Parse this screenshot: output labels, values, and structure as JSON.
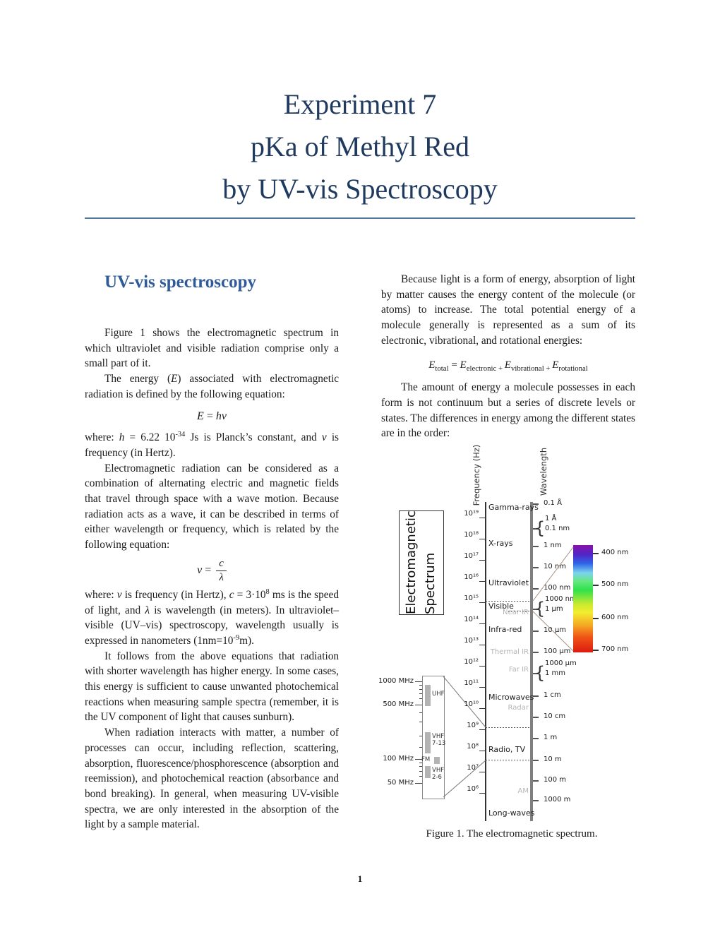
{
  "page": {
    "title_lines": [
      "Experiment 7",
      "pKa of Methyl Red",
      "by UV-vis Spectroscopy"
    ],
    "page_number": "1"
  },
  "left_column": {
    "heading": "UV-vis spectroscopy",
    "p1": "Figure 1 shows the electromagnetic spectrum in which ultraviolet and visible radiation comprise only a small part of it.",
    "p2": [
      {
        "t": "The energy ("
      },
      {
        "t": "E",
        "i": true
      },
      {
        "t": ") associated with electromagnetic radiation is defined by the following equation:"
      }
    ],
    "eq1": [
      {
        "t": "E",
        "i": true
      },
      {
        "t": " = "
      },
      {
        "t": "hν",
        "i": true
      }
    ],
    "p3": [
      {
        "t": "where: "
      },
      {
        "t": "h",
        "i": true
      },
      {
        "t": " = 6.22 10"
      },
      {
        "t": "-34",
        "sup": true
      },
      {
        "t": " Js is Planck’s constant, and "
      },
      {
        "t": "ν ",
        "i": true
      },
      {
        "t": "is frequency (in Hertz)."
      }
    ],
    "p4": "Electromagnetic radiation can be considered as a combination of alternating electric and magnetic fields that travel through space with a wave motion. Because radiation acts as a wave, it can be described in terms of either wavelength or frequency, which is related by the following equation:",
    "eq2": {
      "lhs": [
        {
          "t": "ν ",
          "i": true
        },
        {
          "t": "="
        }
      ],
      "num": "c",
      "den": "λ"
    },
    "p5": [
      {
        "t": "where: "
      },
      {
        "t": "ν ",
        "i": true
      },
      {
        "t": "is frequency (in Hertz), "
      },
      {
        "t": "c",
        "i": true
      },
      {
        "t": " = 3·10"
      },
      {
        "t": "8",
        "sup": true
      },
      {
        "t": " ms is the speed of light, and "
      },
      {
        "t": "λ ",
        "i": true
      },
      {
        "t": "is wavelength (in meters). In ultraviolet–visible (UV–vis) spectroscopy, wavelength usually is expressed in nanometers (1nm=10"
      },
      {
        "t": "-9",
        "sup": true
      },
      {
        "t": "m)."
      }
    ],
    "p6": "It follows from the above equations that radiation with shorter wavelength has higher energy. In some cases, this energy is sufficient to cause unwanted photochemical reactions when measuring sample spectra (remember, it is the UV component of light that causes sunburn).",
    "p7": "When radiation interacts with matter, a number of processes can occur, including reflection, scattering, absorption, fluorescence/phosphorescence (absorption and reemission), and photochemical reaction (absorbance and bond breaking). In general, when measuring UV-visible spectra, we are only interested in the absorption of the light by a sample material."
  },
  "right_column": {
    "p1": "Because light is a form of energy, absorption of light by matter causes the energy content of the molecule (or atoms) to increase. The total potential energy of a molecule generally is represented as a sum of its electronic, vibrational, and rotational energies:",
    "eq3": [
      {
        "t": "E",
        "i": true
      },
      {
        "t": "total",
        "sub": true
      },
      {
        "t": " = "
      },
      {
        "t": "E",
        "i": true
      },
      {
        "t": "electronic",
        "sub": true
      },
      {
        "t": " + ",
        "sub": true
      },
      {
        "t": "E",
        "i": true
      },
      {
        "t": "vibrational",
        "sub": true
      },
      {
        "t": " + ",
        "sub": true
      },
      {
        "t": "E",
        "i": true
      },
      {
        "t": "rotational",
        "sub": true
      }
    ],
    "p2": "The amount of energy a molecule possesses in each form is not continuum but a series of discrete levels or states. The differences in energy among the different states are in the order:"
  },
  "figure": {
    "box_title": [
      "Electromagnetic",
      "Spectrum"
    ],
    "freq_axis_label": "Frequency (Hz)",
    "wl_axis_label": "Wavelength",
    "freq_ticks": [
      "10¹⁹",
      "10¹⁸",
      "10¹⁷",
      "10¹⁶",
      "10¹⁵",
      "10¹⁴",
      "10¹³",
      "10¹²",
      "10¹¹",
      "10¹⁰",
      "10⁹",
      "10⁸",
      "10⁷",
      "10⁶"
    ],
    "wl_ticks": [
      {
        "l1": "0.1 Å"
      },
      {
        "l1": "1 Å",
        "l2": "0.1 nm"
      },
      {
        "l1": "1 nm"
      },
      {
        "l1": "10 nm"
      },
      {
        "l1": "100 nm"
      },
      {
        "l1": "1000 nm",
        "l2": "1 μm"
      },
      {
        "l1": "10 μm"
      },
      {
        "l1": "100 μm"
      },
      {
        "l1": "1000 μm",
        "l2": "1 mm"
      },
      {
        "l1": "1 cm"
      },
      {
        "l1": "10 cm"
      },
      {
        "l1": "1 m"
      },
      {
        "l1": "10 m"
      },
      {
        "l1": "100 m"
      },
      {
        "l1": "1000 m"
      }
    ],
    "regions": [
      "Gamma-rays",
      "X-rays",
      "Ultraviolet",
      "Visible",
      "Infra-red",
      "Microwaves",
      "Radio, TV",
      "Long-waves"
    ],
    "sub_regions": [
      "Near IR",
      "Thermal IR",
      "Far IR",
      "Radar",
      "AM"
    ],
    "visible_band_labels": [
      "400 nm",
      "500 nm",
      "600 nm",
      "700 nm"
    ],
    "radio_inset": {
      "freq_labels": [
        "1000 MHz",
        "500 MHz",
        "100 MHz",
        "50 MHz"
      ],
      "bands": [
        [
          "UHF"
        ],
        [
          "VHF",
          "7-13"
        ],
        [
          "FM"
        ],
        [
          "VHF",
          "2-6"
        ]
      ]
    },
    "colors": {
      "spectrum_top_violet": "#8812a8",
      "spectrum_green": "#2fe14a",
      "spectrum_bottom_red": "#dd1a10",
      "axis_gray": "#7f7f7f"
    },
    "caption": "Figure 1. The electromagnetic spectrum."
  }
}
